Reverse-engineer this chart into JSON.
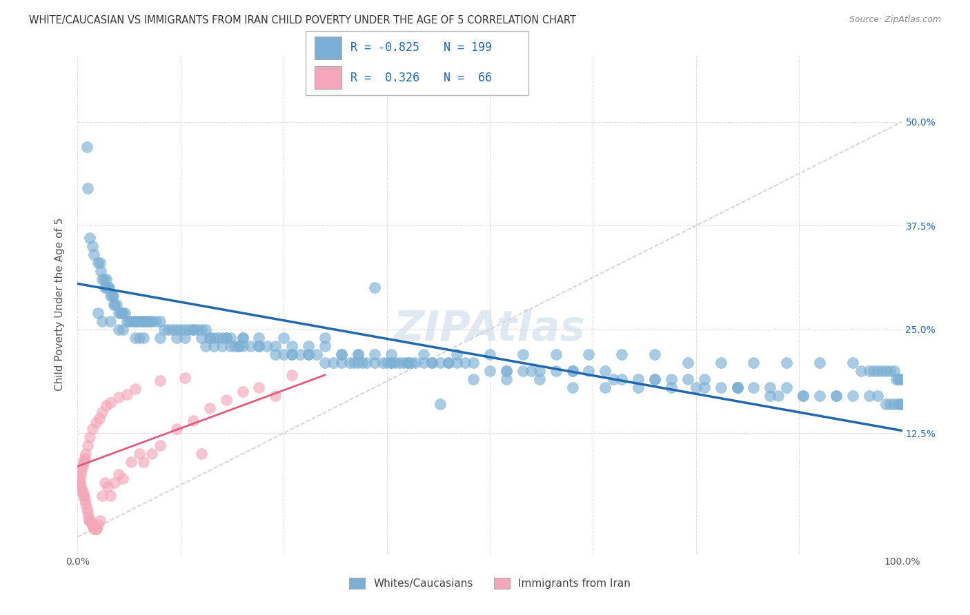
{
  "title": "WHITE/CAUCASIAN VS IMMIGRANTS FROM IRAN CHILD POVERTY UNDER THE AGE OF 5 CORRELATION CHART",
  "source": "Source: ZipAtlas.com",
  "ylabel": "Child Poverty Under the Age of 5",
  "xlim": [
    0,
    1.0
  ],
  "ylim": [
    -0.02,
    0.58
  ],
  "xticks": [
    0.0,
    0.125,
    0.25,
    0.375,
    0.5,
    0.625,
    0.75,
    0.875,
    1.0
  ],
  "xticklabels": [
    "0.0%",
    "",
    "",
    "",
    "",
    "",
    "",
    "",
    "100.0%"
  ],
  "yticks": [
    0.125,
    0.25,
    0.375,
    0.5
  ],
  "yticklabels": [
    "12.5%",
    "25.0%",
    "37.5%",
    "50.0%"
  ],
  "blue_R": -0.825,
  "blue_N": 199,
  "pink_R": 0.326,
  "pink_N": 66,
  "blue_color": "#7bafd4",
  "pink_color": "#f4a7b9",
  "blue_line_color": "#2068ae",
  "pink_line_color": "#e05a7a",
  "diagonal_color": "#cccccc",
  "grid_color": "#dddddd",
  "watermark": "ZIPAtlas",
  "blue_trend_x": [
    0.0,
    1.0
  ],
  "blue_trend_y": [
    0.305,
    0.128
  ],
  "pink_trend_x": [
    0.0,
    0.3
  ],
  "pink_trend_y": [
    0.085,
    0.195
  ],
  "blue_scatter_x": [
    0.011,
    0.012,
    0.015,
    0.018,
    0.02,
    0.025,
    0.027,
    0.028,
    0.03,
    0.032,
    0.033,
    0.035,
    0.035,
    0.037,
    0.038,
    0.04,
    0.042,
    0.043,
    0.044,
    0.045,
    0.047,
    0.05,
    0.052,
    0.053,
    0.055,
    0.057,
    0.06,
    0.062,
    0.065,
    0.068,
    0.07,
    0.072,
    0.075,
    0.078,
    0.08,
    0.082,
    0.085,
    0.088,
    0.09,
    0.095,
    0.1,
    0.105,
    0.11,
    0.115,
    0.12,
    0.125,
    0.13,
    0.135,
    0.14,
    0.145,
    0.15,
    0.155,
    0.16,
    0.165,
    0.17,
    0.175,
    0.18,
    0.185,
    0.19,
    0.195,
    0.2,
    0.21,
    0.22,
    0.23,
    0.24,
    0.25,
    0.26,
    0.27,
    0.28,
    0.29,
    0.3,
    0.31,
    0.32,
    0.33,
    0.34,
    0.35,
    0.36,
    0.37,
    0.38,
    0.39,
    0.4,
    0.41,
    0.42,
    0.43,
    0.44,
    0.45,
    0.46,
    0.47,
    0.48,
    0.5,
    0.52,
    0.54,
    0.56,
    0.58,
    0.6,
    0.62,
    0.64,
    0.66,
    0.68,
    0.7,
    0.72,
    0.74,
    0.76,
    0.78,
    0.8,
    0.82,
    0.84,
    0.86,
    0.88,
    0.9,
    0.92,
    0.94,
    0.96,
    0.97,
    0.98,
    0.985,
    0.99,
    0.995,
    0.998,
    0.999,
    0.025,
    0.03,
    0.04,
    0.05,
    0.055,
    0.07,
    0.075,
    0.08,
    0.1,
    0.12,
    0.13,
    0.15,
    0.16,
    0.18,
    0.2,
    0.25,
    0.3,
    0.36,
    0.155,
    0.165,
    0.175,
    0.185,
    0.195,
    0.22,
    0.24,
    0.26,
    0.28,
    0.32,
    0.34,
    0.38,
    0.42,
    0.46,
    0.5,
    0.54,
    0.58,
    0.62,
    0.66,
    0.7,
    0.74,
    0.78,
    0.82,
    0.86,
    0.9,
    0.94,
    0.95,
    0.96,
    0.965,
    0.97,
    0.975,
    0.98,
    0.985,
    0.99,
    0.993,
    0.995,
    0.997,
    0.999,
    0.48,
    0.52,
    0.56,
    0.6,
    0.64,
    0.68,
    0.72,
    0.76,
    0.8,
    0.84,
    0.88,
    0.92,
    0.44,
    0.14,
    0.2,
    0.22,
    0.26,
    0.28,
    0.3,
    0.32,
    0.34,
    0.36,
    0.38,
    0.4,
    0.43,
    0.45,
    0.52,
    0.55,
    0.6,
    0.65,
    0.7,
    0.75,
    0.8,
    0.85,
    0.335,
    0.345,
    0.375,
    0.385,
    0.395,
    0.405
  ],
  "blue_scatter_y": [
    0.47,
    0.42,
    0.36,
    0.35,
    0.34,
    0.33,
    0.33,
    0.32,
    0.31,
    0.31,
    0.3,
    0.31,
    0.3,
    0.3,
    0.3,
    0.29,
    0.29,
    0.29,
    0.28,
    0.28,
    0.28,
    0.27,
    0.27,
    0.27,
    0.27,
    0.27,
    0.26,
    0.26,
    0.26,
    0.26,
    0.26,
    0.26,
    0.26,
    0.26,
    0.26,
    0.26,
    0.26,
    0.26,
    0.26,
    0.26,
    0.26,
    0.25,
    0.25,
    0.25,
    0.25,
    0.25,
    0.25,
    0.25,
    0.25,
    0.25,
    0.25,
    0.25,
    0.24,
    0.24,
    0.24,
    0.24,
    0.24,
    0.24,
    0.23,
    0.23,
    0.23,
    0.23,
    0.23,
    0.23,
    0.23,
    0.22,
    0.22,
    0.22,
    0.22,
    0.22,
    0.21,
    0.21,
    0.21,
    0.21,
    0.21,
    0.21,
    0.21,
    0.21,
    0.21,
    0.21,
    0.21,
    0.21,
    0.21,
    0.21,
    0.21,
    0.21,
    0.21,
    0.21,
    0.21,
    0.2,
    0.2,
    0.2,
    0.2,
    0.2,
    0.2,
    0.2,
    0.2,
    0.19,
    0.19,
    0.19,
    0.19,
    0.19,
    0.19,
    0.18,
    0.18,
    0.18,
    0.18,
    0.18,
    0.17,
    0.17,
    0.17,
    0.17,
    0.17,
    0.17,
    0.16,
    0.16,
    0.16,
    0.16,
    0.16,
    0.16,
    0.27,
    0.26,
    0.26,
    0.25,
    0.25,
    0.24,
    0.24,
    0.24,
    0.24,
    0.24,
    0.24,
    0.24,
    0.24,
    0.24,
    0.24,
    0.24,
    0.24,
    0.3,
    0.23,
    0.23,
    0.23,
    0.23,
    0.23,
    0.23,
    0.22,
    0.22,
    0.22,
    0.22,
    0.22,
    0.22,
    0.22,
    0.22,
    0.22,
    0.22,
    0.22,
    0.22,
    0.22,
    0.22,
    0.21,
    0.21,
    0.21,
    0.21,
    0.21,
    0.21,
    0.2,
    0.2,
    0.2,
    0.2,
    0.2,
    0.2,
    0.2,
    0.2,
    0.19,
    0.19,
    0.19,
    0.19,
    0.19,
    0.19,
    0.19,
    0.18,
    0.18,
    0.18,
    0.18,
    0.18,
    0.18,
    0.17,
    0.17,
    0.17,
    0.16,
    0.25,
    0.24,
    0.24,
    0.23,
    0.23,
    0.23,
    0.22,
    0.22,
    0.22,
    0.21,
    0.21,
    0.21,
    0.21,
    0.2,
    0.2,
    0.2,
    0.19,
    0.19,
    0.18,
    0.18,
    0.17,
    0.21,
    0.21,
    0.21,
    0.21,
    0.21,
    0.21
  ],
  "pink_scatter_x": [
    0.002,
    0.003,
    0.004,
    0.005,
    0.006,
    0.007,
    0.008,
    0.009,
    0.01,
    0.011,
    0.012,
    0.013,
    0.014,
    0.015,
    0.016,
    0.017,
    0.018,
    0.019,
    0.02,
    0.021,
    0.022,
    0.023,
    0.025,
    0.027,
    0.03,
    0.033,
    0.036,
    0.04,
    0.045,
    0.05,
    0.055,
    0.065,
    0.075,
    0.08,
    0.09,
    0.1,
    0.12,
    0.14,
    0.16,
    0.18,
    0.2,
    0.22,
    0.24,
    0.26,
    0.003,
    0.004,
    0.005,
    0.006,
    0.007,
    0.008,
    0.009,
    0.01,
    0.012,
    0.015,
    0.018,
    0.022,
    0.026,
    0.03,
    0.035,
    0.04,
    0.05,
    0.06,
    0.07,
    0.1,
    0.13,
    0.15
  ],
  "pink_scatter_y": [
    0.065,
    0.065,
    0.06,
    0.055,
    0.055,
    0.05,
    0.05,
    0.045,
    0.04,
    0.035,
    0.03,
    0.025,
    0.02,
    0.02,
    0.018,
    0.016,
    0.014,
    0.012,
    0.01,
    0.01,
    0.01,
    0.01,
    0.015,
    0.02,
    0.05,
    0.065,
    0.06,
    0.05,
    0.065,
    0.075,
    0.07,
    0.09,
    0.1,
    0.09,
    0.1,
    0.11,
    0.13,
    0.14,
    0.155,
    0.165,
    0.175,
    0.18,
    0.17,
    0.195,
    0.07,
    0.075,
    0.08,
    0.085,
    0.09,
    0.092,
    0.095,
    0.1,
    0.11,
    0.12,
    0.13,
    0.138,
    0.143,
    0.15,
    0.158,
    0.162,
    0.168,
    0.172,
    0.178,
    0.188,
    0.192,
    0.1
  ]
}
